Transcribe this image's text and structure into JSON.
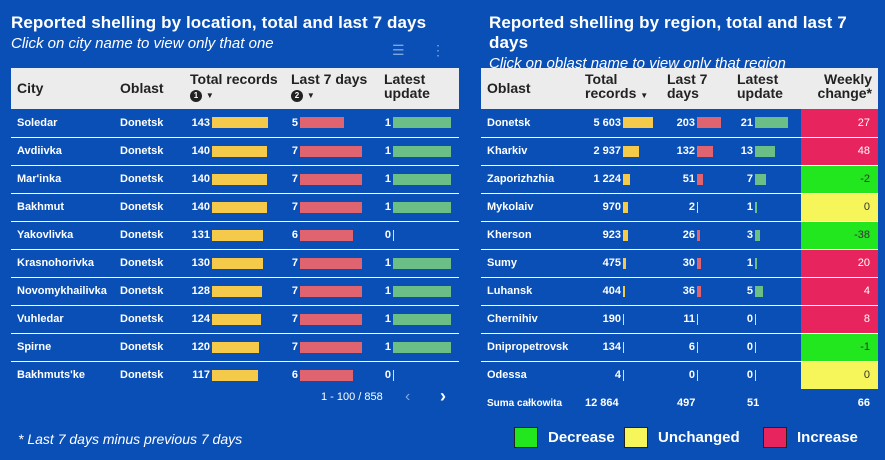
{
  "left": {
    "title": "Reported shelling by location, total and last 7 days",
    "subtitle": "Click on city name to view only that one",
    "headers": {
      "city": "City",
      "oblast": "Oblast",
      "total": "Total records",
      "total_badge": "1",
      "last7": "Last 7 days",
      "last7_badge": "2",
      "latest": "Latest update"
    },
    "rows": [
      {
        "city": "Soledar",
        "oblast": "Donetsk",
        "total": 143,
        "last7": 5,
        "latest": 1
      },
      {
        "city": "Avdiivka",
        "oblast": "Donetsk",
        "total": 140,
        "last7": 7,
        "latest": 1
      },
      {
        "city": "Mar'inka",
        "oblast": "Donetsk",
        "total": 140,
        "last7": 7,
        "latest": 1
      },
      {
        "city": "Bakhmut",
        "oblast": "Donetsk",
        "total": 140,
        "last7": 7,
        "latest": 1
      },
      {
        "city": "Yakovlivka",
        "oblast": "Donetsk",
        "total": 131,
        "last7": 6,
        "latest": 0
      },
      {
        "city": "Krasnohorivka",
        "oblast": "Donetsk",
        "total": 130,
        "last7": 7,
        "latest": 1
      },
      {
        "city": "Novomykhailivka",
        "oblast": "Donetsk",
        "total": 128,
        "last7": 7,
        "latest": 1
      },
      {
        "city": "Vuhledar",
        "oblast": "Donetsk",
        "total": 124,
        "last7": 7,
        "latest": 1
      },
      {
        "city": "Spirne",
        "oblast": "Donetsk",
        "total": 120,
        "last7": 7,
        "latest": 1
      },
      {
        "city": "Bakhmuts'ke",
        "oblast": "Donetsk",
        "total": 117,
        "last7": 6,
        "latest": 0
      }
    ],
    "pager": "1 - 100 / 858",
    "max_total": 143,
    "max_last7": 7,
    "max_latest": 1
  },
  "right": {
    "title": "Reported shelling by region, total and last 7 days",
    "subtitle": "Click on oblast name to view only that region",
    "headers": {
      "oblast": "Oblast",
      "total": "Total records",
      "last7": "Last 7 days",
      "latest": "Latest update",
      "weekly": "Weekly change*"
    },
    "rows": [
      {
        "oblast": "Donetsk",
        "total": "5 603",
        "total_v": 5603,
        "last7": 203,
        "latest": 21,
        "weekly": "27",
        "status": "inc"
      },
      {
        "oblast": "Kharkiv",
        "total": "2 937",
        "total_v": 2937,
        "last7": 132,
        "latest": 13,
        "weekly": "48",
        "status": "inc"
      },
      {
        "oblast": "Zaporizhzhia",
        "total": "1 224",
        "total_v": 1224,
        "last7": 51,
        "latest": 7,
        "weekly": "-2",
        "status": "dec"
      },
      {
        "oblast": "Mykolaiv",
        "total": "970",
        "total_v": 970,
        "last7": 2,
        "latest": 1,
        "weekly": "0",
        "status": "unc"
      },
      {
        "oblast": "Kherson",
        "total": "923",
        "total_v": 923,
        "last7": 26,
        "latest": 3,
        "weekly": "-38",
        "status": "dec"
      },
      {
        "oblast": "Sumy",
        "total": "475",
        "total_v": 475,
        "last7": 30,
        "latest": 1,
        "weekly": "20",
        "status": "inc"
      },
      {
        "oblast": "Luhansk",
        "total": "404",
        "total_v": 404,
        "last7": 36,
        "latest": 5,
        "weekly": "4",
        "status": "inc"
      },
      {
        "oblast": "Chernihiv",
        "total": "190",
        "total_v": 190,
        "last7": 11,
        "latest": 0,
        "weekly": "8",
        "status": "inc"
      },
      {
        "oblast": "Dnipropetrovsk",
        "total": "134",
        "total_v": 134,
        "last7": 6,
        "latest": 0,
        "weekly": "-1",
        "status": "dec"
      },
      {
        "oblast": "Odessa",
        "total": "4",
        "total_v": 4,
        "last7": 0,
        "latest": 0,
        "weekly": "0",
        "status": "unc"
      }
    ],
    "sum": {
      "label": "Suma całkowita",
      "total": "12 864",
      "last7": "497",
      "latest": "51",
      "weekly": "66"
    },
    "max_total": 5603,
    "max_last7": 203,
    "max_latest": 21
  },
  "footnote": "* Last 7 days minus previous 7 days",
  "legend": [
    {
      "label": "Decrease",
      "color": "#22e61e"
    },
    {
      "label": "Unchanged",
      "color": "#f6f55a"
    },
    {
      "label": "Increase",
      "color": "#e8245e"
    }
  ]
}
